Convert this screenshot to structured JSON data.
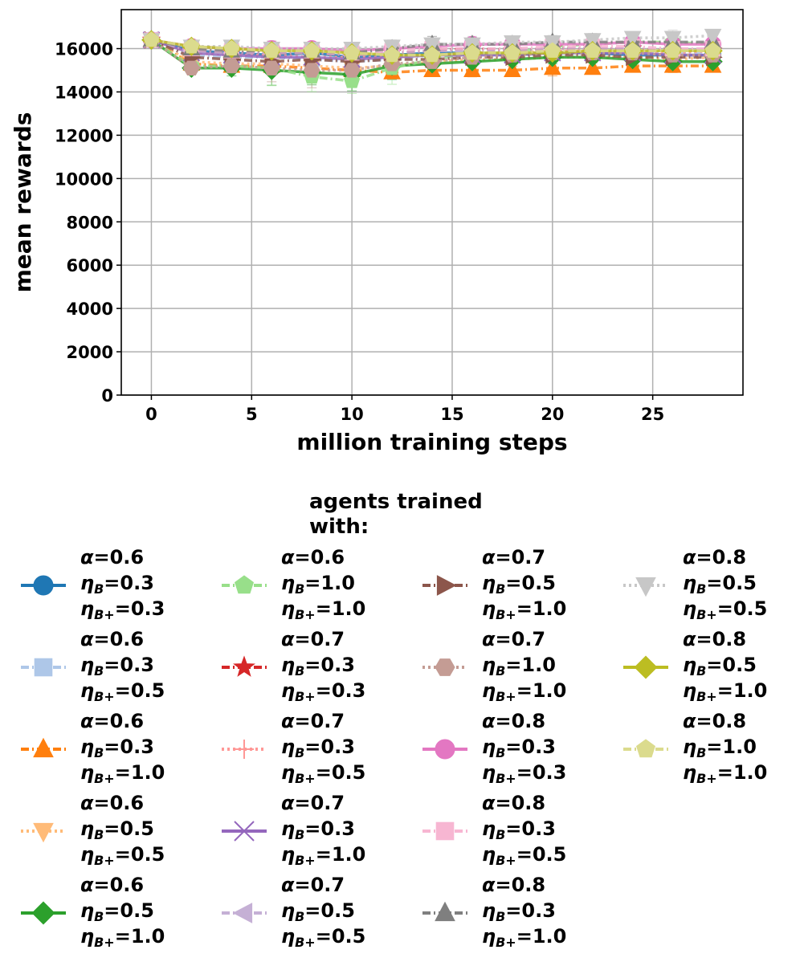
{
  "chart_data": {
    "type": "line",
    "title": "",
    "xlabel": "million training steps",
    "ylabel": "mean rewards",
    "xlim": [
      -1.5,
      29.5
    ],
    "ylim": [
      0,
      17800
    ],
    "xticks": [
      0,
      5,
      10,
      15,
      20,
      25
    ],
    "yticks": [
      0,
      2000,
      4000,
      6000,
      8000,
      10000,
      12000,
      14000,
      16000
    ],
    "grid": true,
    "legend": {
      "title_lines": [
        "agents trained",
        "with:"
      ],
      "placement": "below",
      "columns": 4
    },
    "x": [
      0,
      2,
      4,
      6,
      8,
      10,
      12,
      14,
      16,
      18,
      20,
      22,
      24,
      26,
      28
    ],
    "series": [
      {
        "alpha": "0.6",
        "eta_b": "0.3",
        "eta_bp": "0.3",
        "color": "#1f77b4",
        "marker": "circle",
        "dash": "solid",
        "values": [
          16400,
          15900,
          15800,
          15700,
          15800,
          15600,
          15700,
          15800,
          15800,
          15700,
          15800,
          15800,
          15700,
          15700,
          15700
        ]
      },
      {
        "alpha": "0.6",
        "eta_b": "0.3",
        "eta_bp": "0.5",
        "color": "#aec7e8",
        "marker": "square",
        "dash": "dashdot",
        "values": [
          16400,
          15700,
          15600,
          15600,
          15500,
          15400,
          15500,
          15700,
          15800,
          15700,
          15900,
          15900,
          15900,
          15800,
          15800
        ]
      },
      {
        "alpha": "0.6",
        "eta_b": "0.3",
        "eta_bp": "1.0",
        "color": "#ff7f0e",
        "marker": "triangle-up",
        "dash": "dashdot",
        "values": [
          16400,
          15300,
          15200,
          15200,
          15100,
          15000,
          14900,
          15000,
          15000,
          15000,
          15100,
          15100,
          15200,
          15200,
          15200
        ]
      },
      {
        "alpha": "0.6",
        "eta_b": "0.5",
        "eta_bp": "0.5",
        "color": "#ffbb78",
        "marker": "triangle-down",
        "dash": "dotted",
        "values": [
          16400,
          15400,
          15300,
          15300,
          15200,
          15100,
          15200,
          15400,
          15500,
          15500,
          15600,
          15600,
          15600,
          15500,
          15600
        ]
      },
      {
        "alpha": "0.6",
        "eta_b": "0.5",
        "eta_bp": "1.0",
        "color": "#2ca02c",
        "marker": "diamond",
        "dash": "solid",
        "values": [
          16400,
          15100,
          15100,
          15000,
          14900,
          14800,
          15200,
          15300,
          15400,
          15500,
          15600,
          15600,
          15500,
          15400,
          15400
        ]
      },
      {
        "alpha": "0.6",
        "eta_b": "1.0",
        "eta_bp": "1.0",
        "color": "#98df8a",
        "marker": "pentagon",
        "dash": "dashdot",
        "values": [
          16400,
          15200,
          15200,
          15100,
          14700,
          14500,
          15100,
          15500,
          15800,
          15800,
          16100,
          16200,
          16300,
          16300,
          16200
        ]
      },
      {
        "alpha": "0.7",
        "eta_b": "0.3",
        "eta_bp": "0.3",
        "color": "#d62728",
        "marker": "star",
        "dash": "dashdot",
        "values": [
          16400,
          15900,
          15800,
          15800,
          15800,
          15700,
          15800,
          15900,
          16000,
          15900,
          16000,
          16000,
          16000,
          15900,
          15900
        ]
      },
      {
        "alpha": "0.7",
        "eta_b": "0.3",
        "eta_bp": "0.5",
        "color": "#ff9896",
        "marker": "plus",
        "dash": "dotted",
        "values": [
          16400,
          15800,
          15700,
          15700,
          15600,
          15600,
          15600,
          15700,
          15800,
          15800,
          15900,
          15900,
          15900,
          15800,
          15900
        ]
      },
      {
        "alpha": "0.7",
        "eta_b": "0.3",
        "eta_bp": "1.0",
        "color": "#9467bd",
        "marker": "x",
        "dash": "solid",
        "values": [
          16400,
          15800,
          15700,
          15600,
          15600,
          15500,
          15600,
          15700,
          15700,
          15700,
          15800,
          15800,
          15800,
          15700,
          15700
        ]
      },
      {
        "alpha": "0.7",
        "eta_b": "0.5",
        "eta_bp": "0.5",
        "color": "#c5b0d5",
        "marker": "triangle-left",
        "dash": "dashdot",
        "values": [
          16400,
          15900,
          15800,
          15800,
          15800,
          15700,
          15800,
          15900,
          15900,
          15900,
          16000,
          16000,
          16000,
          15900,
          15900
        ]
      },
      {
        "alpha": "0.7",
        "eta_b": "0.5",
        "eta_bp": "1.0",
        "color": "#8c564b",
        "marker": "triangle-right",
        "dash": "dashdot",
        "values": [
          16400,
          15600,
          15500,
          15400,
          15500,
          15400,
          15500,
          15500,
          15600,
          15600,
          15700,
          15700,
          15600,
          15600,
          15600
        ]
      },
      {
        "alpha": "0.7",
        "eta_b": "1.0",
        "eta_bp": "1.0",
        "color": "#c49c94",
        "marker": "hexagon",
        "dash": "dotted",
        "values": [
          16400,
          15100,
          15200,
          15100,
          15000,
          15000,
          15300,
          15400,
          15600,
          15700,
          15800,
          15800,
          15800,
          15700,
          15700
        ]
      },
      {
        "alpha": "0.8",
        "eta_b": "0.3",
        "eta_bp": "0.3",
        "color": "#e377c2",
        "marker": "circle",
        "dash": "solid",
        "values": [
          16400,
          16100,
          16000,
          16000,
          16000,
          15900,
          16000,
          16100,
          16200,
          16200,
          16200,
          16200,
          16300,
          16200,
          16200
        ]
      },
      {
        "alpha": "0.8",
        "eta_b": "0.3",
        "eta_bp": "0.5",
        "color": "#f7b6d2",
        "marker": "square",
        "dash": "dashdot",
        "values": [
          16400,
          16000,
          15900,
          15900,
          15900,
          15800,
          15900,
          16000,
          16000,
          16000,
          16100,
          16100,
          16100,
          16000,
          16000
        ]
      },
      {
        "alpha": "0.8",
        "eta_b": "0.3",
        "eta_bp": "1.0",
        "color": "#7f7f7f",
        "marker": "triangle-up",
        "dash": "dashdot",
        "values": [
          16400,
          16000,
          15900,
          15900,
          15900,
          15800,
          16000,
          16200,
          16200,
          16200,
          16300,
          16300,
          16300,
          16300,
          16300
        ]
      },
      {
        "alpha": "0.8",
        "eta_b": "0.5",
        "eta_bp": "0.5",
        "color": "#c7c7c7",
        "marker": "triangle-down",
        "dash": "dotted",
        "values": [
          16400,
          16100,
          16100,
          16000,
          16000,
          16000,
          16100,
          16200,
          16200,
          16300,
          16300,
          16400,
          16500,
          16500,
          16600
        ]
      },
      {
        "alpha": "0.8",
        "eta_b": "0.5",
        "eta_bp": "1.0",
        "color": "#bcbd22",
        "marker": "diamond",
        "dash": "solid",
        "values": [
          16400,
          16100,
          16000,
          15900,
          15900,
          15800,
          15700,
          15700,
          15800,
          15800,
          15800,
          15900,
          15900,
          15900,
          15900
        ]
      },
      {
        "alpha": "0.8",
        "eta_b": "1.0",
        "eta_bp": "1.0",
        "color": "#dbdb8d",
        "marker": "pentagon",
        "dash": "dashdot",
        "values": [
          16400,
          16100,
          16000,
          15900,
          15900,
          15800,
          15700,
          15700,
          15800,
          15800,
          15900,
          15900,
          15900,
          15900,
          15900
        ]
      }
    ]
  }
}
